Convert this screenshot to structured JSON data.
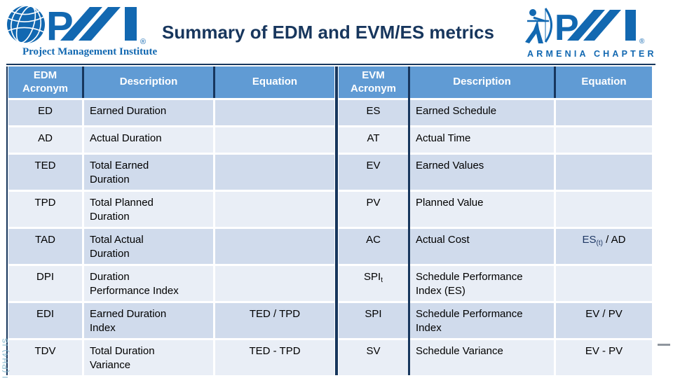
{
  "slide": {
    "title": "Summary of EDM and EVM/ES metrics"
  },
  "logos": {
    "pmi": {
      "mark": "PMI",
      "name": "Project Management Institute",
      "reg": "®"
    },
    "armenia": {
      "mark": "PMI",
      "name": "ARMENIA CHAPTER",
      "reg": "®"
    }
  },
  "tables": {
    "edm": {
      "columns": [
        "EDM\nAcronym",
        "Description",
        "Equation"
      ],
      "rows": [
        {
          "acronym": "ED",
          "description": "Earned Duration",
          "equation": ""
        },
        {
          "acronym": "AD",
          "description": "Actual Duration",
          "equation": ""
        },
        {
          "acronym": "TED",
          "description": "Total Earned\nDuration",
          "equation": ""
        },
        {
          "acronym": "TPD",
          "description": "Total Planned\nDuration",
          "equation": ""
        },
        {
          "acronym": "TAD",
          "description": "Total Actual\nDuration",
          "equation": ""
        },
        {
          "acronym": "DPI",
          "description": "Duration\nPerformance Index",
          "equation": ""
        },
        {
          "acronym": "EDI",
          "description": "Earned Duration\nIndex",
          "equation": "TED / TPD"
        },
        {
          "acronym": "TDV",
          "description": "Total Duration\nVariance",
          "equation": "TED - TPD"
        }
      ]
    },
    "evm": {
      "columns": [
        "EVM\nAcronym",
        "Description",
        "Equation"
      ],
      "rows": [
        {
          "acronym": "ES",
          "description": "Earned Schedule",
          "equation": ""
        },
        {
          "acronym": "AT",
          "description": "Actual Time",
          "equation": ""
        },
        {
          "acronym": "EV",
          "description": "Earned Values",
          "equation": ""
        },
        {
          "acronym": "PV",
          "description": "Planned Value",
          "equation": ""
        },
        {
          "acronym": "AC",
          "description": "Actual Cost",
          "equation_parts": [
            {
              "text": "ES",
              "sub": false,
              "color": "#1F3864"
            },
            {
              "text": "(t)",
              "sub": true,
              "color": "#1F3864"
            },
            {
              "text": "  / AD",
              "sub": false,
              "color": "#000000"
            }
          ]
        },
        {
          "acronym": "SPI",
          "acronym_sub": "t",
          "description": "Schedule Performance\nIndex (ES)",
          "equation": ""
        },
        {
          "acronym": "SPI",
          "description": "Schedule Performance\nIndex",
          "equation": "EV / PV"
        },
        {
          "acronym": "SV",
          "description": "Schedule Variance",
          "equation": "EV - PV"
        }
      ]
    }
  },
  "watermark": "GI (PH4) IS",
  "colors": {
    "header_bg": "#609BD4",
    "band_dark": "#D0DBEC",
    "band_light": "#E9EEF6",
    "title_navy": "#17365D",
    "equation_highlight": "#1F3864",
    "logo_blue": "#1268B1"
  }
}
